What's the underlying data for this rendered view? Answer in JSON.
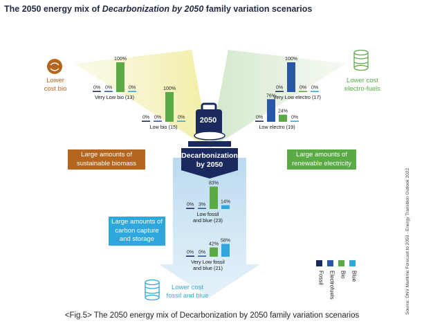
{
  "title": {
    "prefix": "The 2050 energy mix of ",
    "emphasis": "Decarbonization by 2050",
    "suffix": " family variation scenarios"
  },
  "center": {
    "label": "Decarbonization by 2050",
    "badge": "2050"
  },
  "corners": {
    "bio": "Lower cost bio",
    "electro": "Lower cost electro-fuels",
    "fossil": "Lower cost fossil and blue"
  },
  "themes": {
    "biomass": [
      "Large amounts of",
      "sustainable biomass"
    ],
    "renewable": [
      "Large amounts of",
      "renewable electricity"
    ],
    "ccs": [
      "Large amounts of",
      "carbon capture",
      "and storage"
    ]
  },
  "legend": [
    "Fossil",
    "Electrofuels",
    "Bio",
    "Blue"
  ],
  "caption": "<Fig.5> The 2050 energy mix of Decarbonization by 2050 family variation scenarios",
  "source": "Source: DNV Maritime Forecast to 2050 - Energy Transition Outlook 2022",
  "colors": {
    "fossil": "#1b2a5e",
    "electrofuels": "#2b57a8",
    "bio": "#5aaa45",
    "blue": "#2fa6dc",
    "bio_theme": "#b5651d",
    "renewable_theme": "#5aaa45",
    "ccs_theme": "#2fa6dc"
  },
  "chart_data": {
    "type": "bar",
    "categories": [
      "Fossil",
      "Electrofuels",
      "Bio",
      "Blue"
    ],
    "unit": "%",
    "scenarios": [
      {
        "name": "Very Low bio (13)",
        "values": [
          0,
          0,
          100,
          0
        ]
      },
      {
        "name": "Low bio (15)",
        "values": [
          0,
          0,
          100,
          0
        ]
      },
      {
        "name": "Very Low electro (17)",
        "values": [
          0,
          100,
          0,
          0
        ]
      },
      {
        "name": "Low electro (19)",
        "values": [
          0,
          76,
          24,
          0
        ]
      },
      {
        "name": "Low fossil and blue (23)",
        "values": [
          0,
          3,
          83,
          14
        ]
      },
      {
        "name": "Very Low fossil and blue (21)",
        "values": [
          0,
          0,
          42,
          58
        ]
      }
    ]
  }
}
